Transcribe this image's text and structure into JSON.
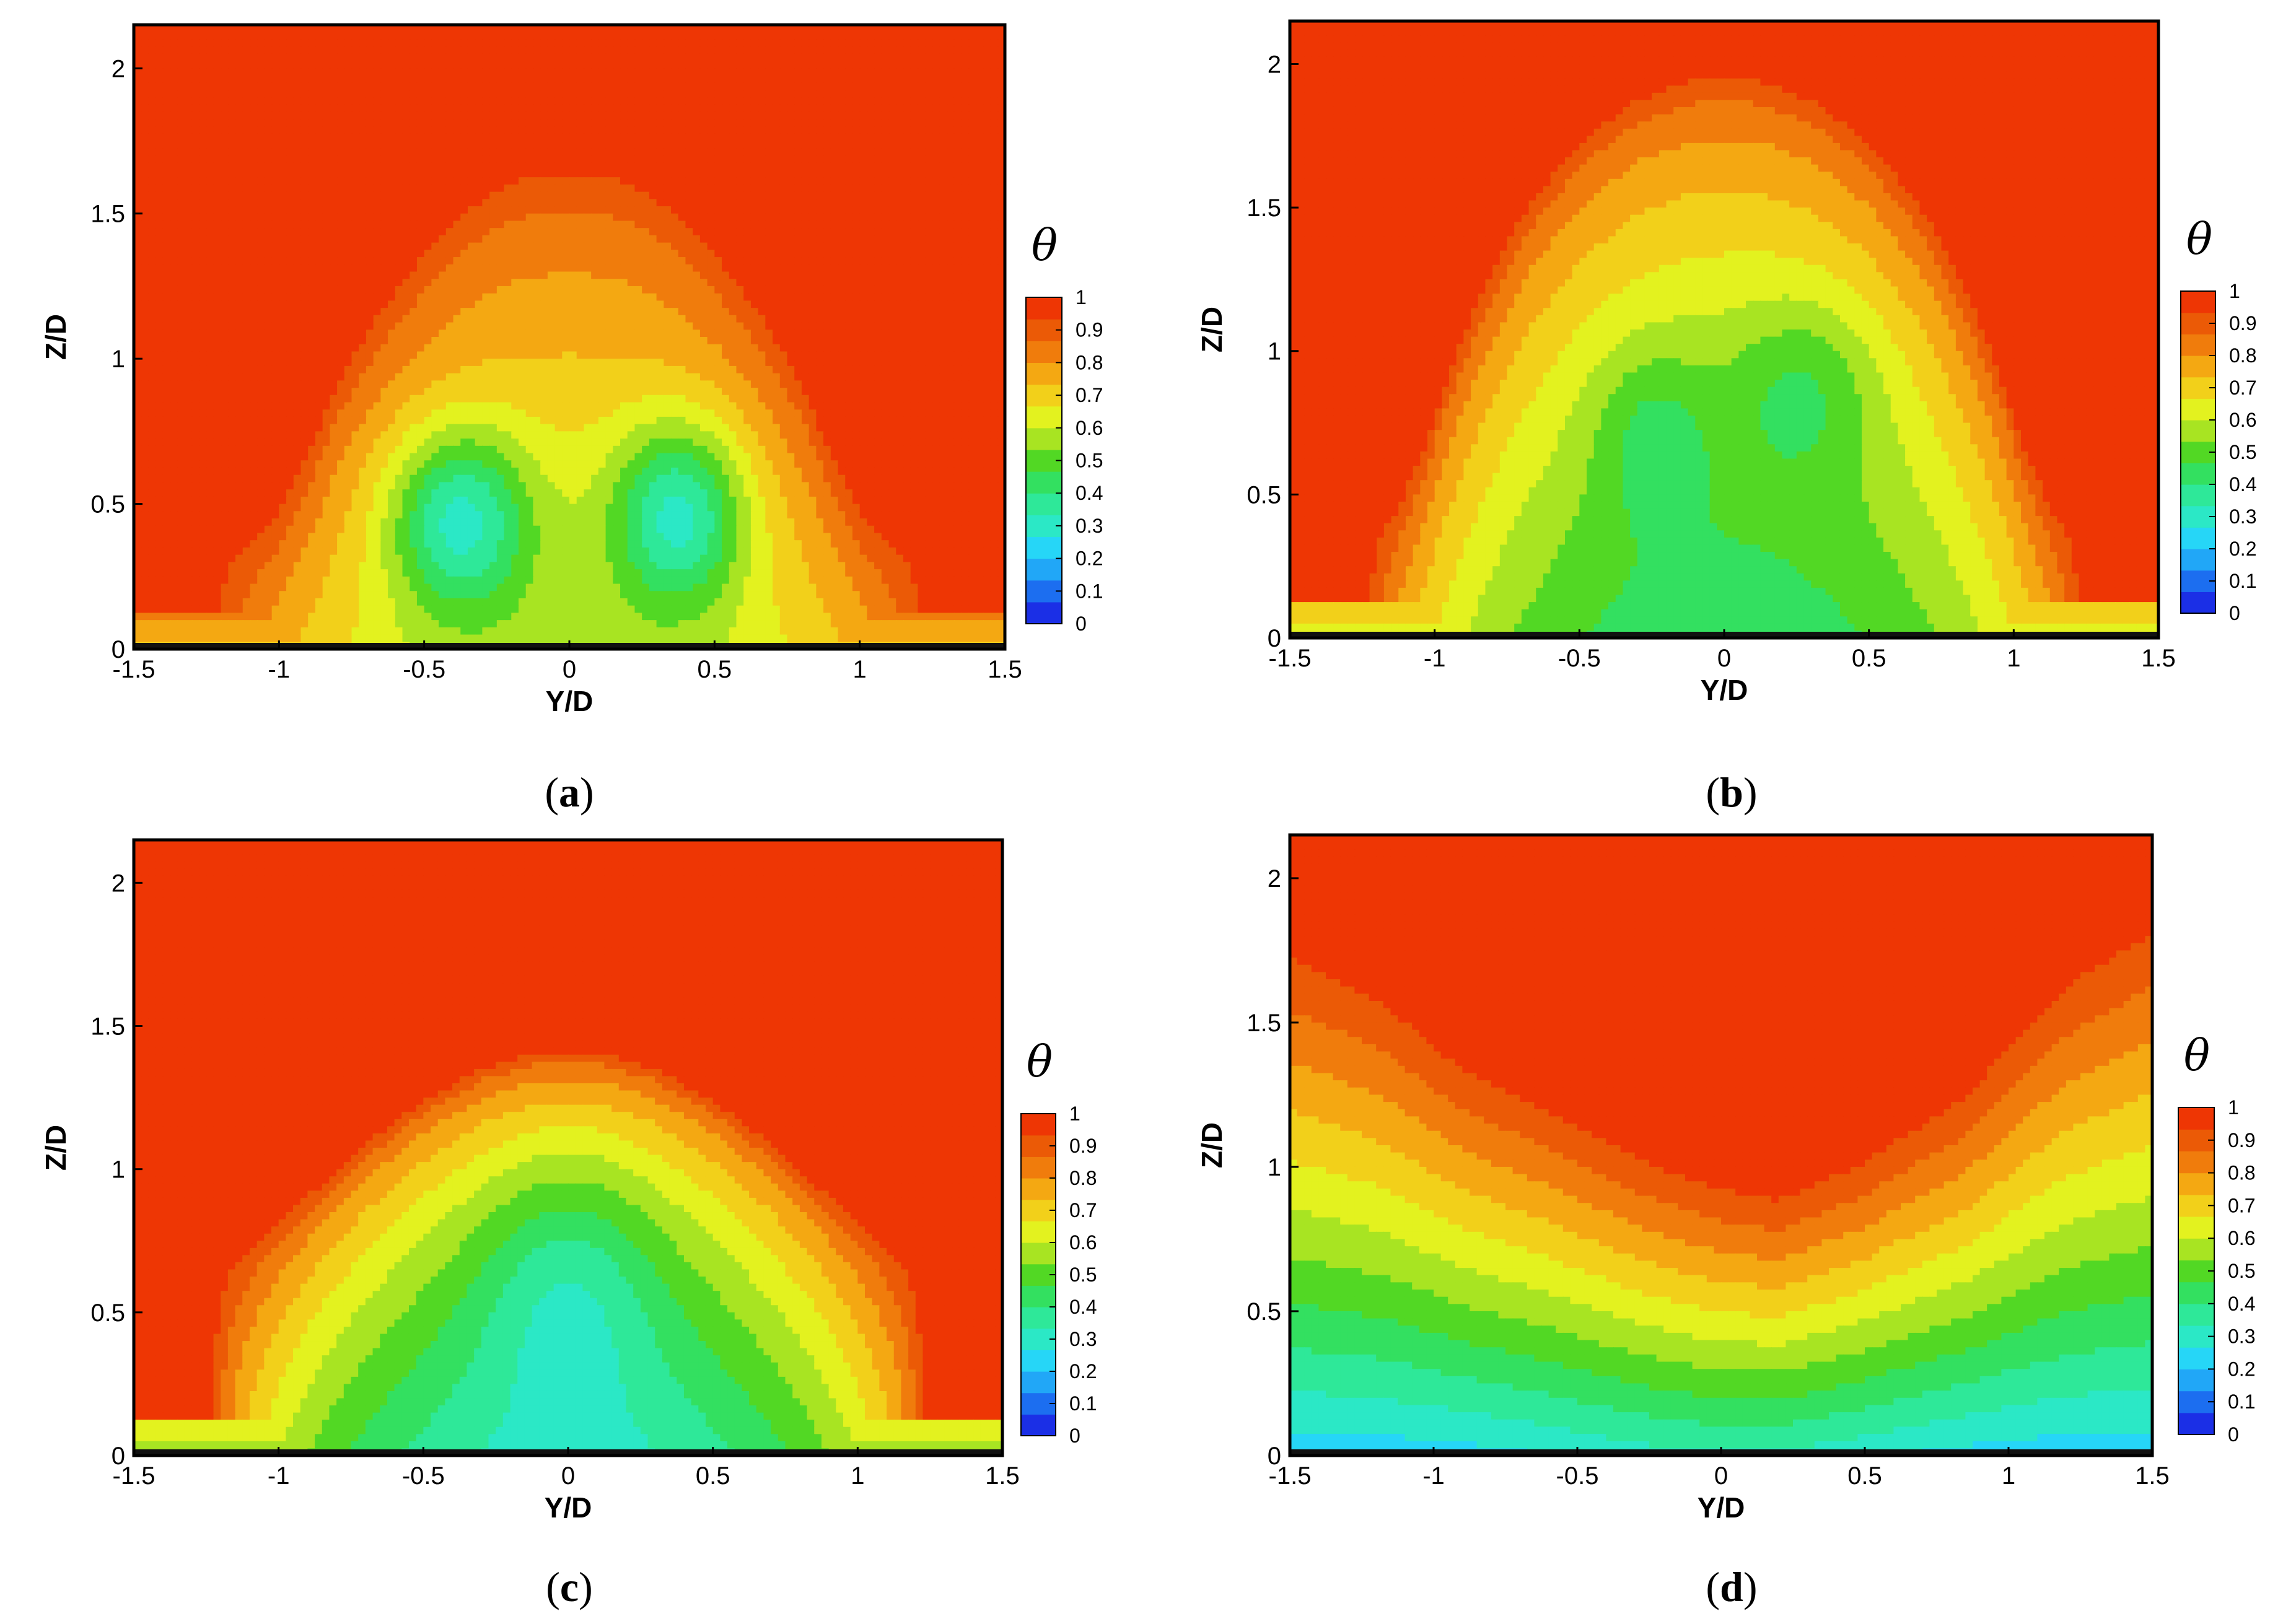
{
  "figure": {
    "colormap": [
      "#1b2fe6",
      "#1c6ef0",
      "#21a7f7",
      "#26d6f7",
      "#2be8c6",
      "#2ee899",
      "#33e060",
      "#52d824",
      "#a8e422",
      "#e3f21f",
      "#f2d01a",
      "#f4a812",
      "#f07c0c",
      "#eb5a06",
      "#ee3604"
    ],
    "isolines": [
      "#000000"
    ]
  },
  "chart_data": [
    {
      "type": "contour",
      "panel": "a",
      "caption_open": "(",
      "caption_letter": "a",
      "caption_close": ")",
      "xlabel": "Y/D",
      "ylabel": "Z/D",
      "xlim": [
        -1.5,
        1.5
      ],
      "ylim": [
        0,
        2.15
      ],
      "xticks": [
        "-1.5",
        "-1",
        "-0.5",
        "0",
        "0.5",
        "1",
        "1.5"
      ],
      "yticks": [
        "0",
        "0.5",
        "1",
        "1.5",
        "2"
      ],
      "colorbar": {
        "title": "θ",
        "ticks": [
          "1",
          "0.9",
          "0.8",
          "0.7",
          "0.6",
          "0.5",
          "0.4",
          "0.3",
          "0.2",
          "0.1",
          "0"
        ]
      },
      "field": {
        "kind": "kidney",
        "boundary": {
          "x": [
            -1.5,
            -1.25,
            -1.1,
            -1.0,
            -0.9,
            -0.8,
            -0.65,
            -0.5,
            -0.35,
            -0.2,
            0,
            0.2,
            0.35,
            0.5,
            0.65,
            0.8,
            0.9,
            1.0,
            1.1,
            1.25,
            1.5
          ],
          "z": [
            0.35,
            0.36,
            0.4,
            0.5,
            0.7,
            0.95,
            1.2,
            1.4,
            1.55,
            1.65,
            1.68,
            1.65,
            1.55,
            1.4,
            1.2,
            0.95,
            0.7,
            0.5,
            0.4,
            0.36,
            0.35
          ]
        },
        "minima": [
          {
            "y": -0.38,
            "z": 0.45,
            "value": 0.22,
            "sy": 0.17,
            "sz": 0.22
          },
          {
            "y": 0.38,
            "z": 0.47,
            "value": 0.22,
            "sy": 0.16,
            "sz": 0.22
          }
        ],
        "background_core": 0.58,
        "wall_value": 0.72
      }
    },
    {
      "type": "contour",
      "panel": "b",
      "caption_open": "(",
      "caption_letter": "b",
      "caption_close": ")",
      "xlabel": "Y/D",
      "ylabel": "Z/D",
      "xlim": [
        -1.5,
        1.5
      ],
      "ylim": [
        0,
        2.15
      ],
      "xticks": [
        "-1.5",
        "-1",
        "-0.5",
        "0",
        "0.5",
        "1",
        "1.5"
      ],
      "yticks": [
        "0",
        "0.5",
        "1",
        "1.5",
        "2"
      ],
      "colorbar": {
        "title": "θ",
        "ticks": [
          "1",
          "0.9",
          "0.8",
          "0.7",
          "0.6",
          "0.5",
          "0.4",
          "0.3",
          "0.2",
          "0.1",
          "0"
        ]
      },
      "field": {
        "kind": "kidney",
        "boundary": {
          "x": [
            -1.5,
            -1.3,
            -1.15,
            -1.05,
            -0.95,
            -0.85,
            -0.7,
            -0.5,
            -0.3,
            -0.1,
            0.1,
            0.3,
            0.5,
            0.7,
            0.85,
            0.95,
            1.05,
            1.15,
            1.3,
            1.5
          ],
          "z": [
            0.37,
            0.38,
            0.45,
            0.65,
            0.95,
            1.2,
            1.5,
            1.75,
            1.9,
            1.97,
            1.97,
            1.9,
            1.75,
            1.5,
            1.2,
            0.95,
            0.65,
            0.45,
            0.38,
            0.37
          ]
        },
        "minima": [
          {
            "y": -0.25,
            "z": 0.72,
            "value": 0.3,
            "sy": 0.14,
            "sz": 0.22
          },
          {
            "y": 0.28,
            "z": 0.88,
            "value": 0.29,
            "sy": 0.18,
            "sz": 0.22
          }
        ],
        "background_core": 0.42,
        "wall_value": 0.62
      }
    },
    {
      "type": "contour",
      "panel": "c",
      "caption_open": "(",
      "caption_letter": "c",
      "caption_close": ")",
      "xlabel": "Y/D",
      "ylabel": "Z/D",
      "xlim": [
        -1.5,
        1.5
      ],
      "ylim": [
        0,
        2.15
      ],
      "xticks": [
        "-1.5",
        "-1",
        "-0.5",
        "0",
        "0.5",
        "1",
        "1.5"
      ],
      "yticks": [
        "0",
        "0.5",
        "1",
        "1.5",
        "2"
      ],
      "colorbar": {
        "title": "θ",
        "ticks": [
          "1",
          "0.9",
          "0.8",
          "0.7",
          "0.6",
          "0.5",
          "0.4",
          "0.3",
          "0.2",
          "0.1",
          "0"
        ]
      },
      "field": {
        "kind": "single",
        "boundary": {
          "x": [
            -1.5,
            -1.3,
            -1.1,
            -0.9,
            -0.7,
            -0.5,
            -0.3,
            -0.1,
            0.1,
            0.3,
            0.5,
            0.7,
            0.9,
            1.1,
            1.3,
            1.5
          ],
          "z": [
            0.53,
            0.6,
            0.75,
            0.92,
            1.1,
            1.25,
            1.36,
            1.42,
            1.42,
            1.36,
            1.25,
            1.1,
            0.92,
            0.75,
            0.6,
            0.53
          ]
        },
        "minima": [
          {
            "y": 0.0,
            "z": 0.6,
            "value": 0.17,
            "sy": 0.22,
            "sz": 0.32
          }
        ],
        "background_core": 0.32,
        "wall_value": 0.55
      }
    },
    {
      "type": "contour",
      "panel": "d",
      "caption_open": "(",
      "caption_letter": "d",
      "caption_close": ")",
      "xlabel": "Y/D",
      "ylabel": "Z/D",
      "xlim": [
        -1.5,
        1.5
      ],
      "ylim": [
        0,
        2.15
      ],
      "xticks": [
        "-1.5",
        "-1",
        "-0.5",
        "0",
        "0.5",
        "1",
        "1.5"
      ],
      "yticks": [
        "0",
        "0.5",
        "1",
        "1.5",
        "2"
      ],
      "colorbar": {
        "title": "θ",
        "ticks": [
          "1",
          "0.9",
          "0.8",
          "0.7",
          "0.6",
          "0.5",
          "0.4",
          "0.3",
          "0.2",
          "0.1",
          "0"
        ]
      },
      "field": {
        "kind": "layered",
        "boundary": {
          "x": [
            -1.5,
            -1.2,
            -0.9,
            -0.6,
            -0.3,
            0.0,
            0.2,
            0.5,
            0.85,
            1.2,
            1.5
          ],
          "z": [
            1.9,
            1.75,
            1.5,
            1.38,
            1.25,
            1.15,
            1.1,
            1.2,
            1.4,
            1.8,
            2.0
          ]
        },
        "bottom_value": 0.22,
        "center_dip": 0.12
      }
    }
  ]
}
